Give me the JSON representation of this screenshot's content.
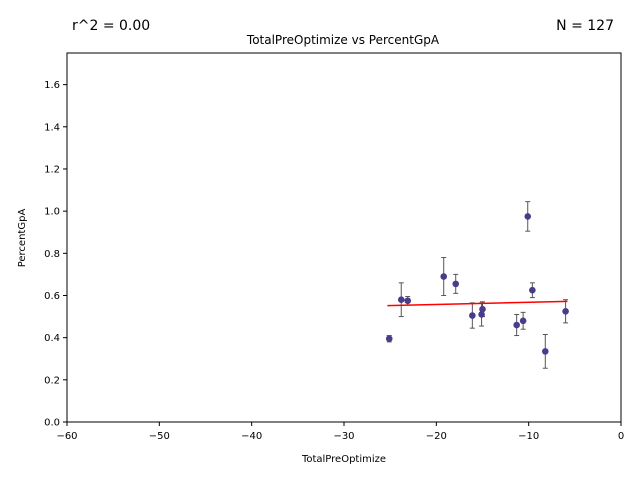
{
  "chart_data": {
    "type": "scatter",
    "title": "TotalPreOptimize vs PercentGpA",
    "xlabel": "TotalPreOptimize",
    "ylabel": "PercentGpA",
    "xlim": [
      -60,
      0
    ],
    "ylim": [
      0,
      1.75
    ],
    "xticks": [
      -60,
      -50,
      -40,
      -30,
      -20,
      -10,
      0
    ],
    "xtick_labels": [
      "−60",
      "−50",
      "−40",
      "−30",
      "−20",
      "−10",
      "0"
    ],
    "yticks": [
      0.0,
      0.2,
      0.4,
      0.6,
      0.8,
      1.0,
      1.2,
      1.4,
      1.6
    ],
    "ytick_labels": [
      "0.0",
      "0.2",
      "0.4",
      "0.6",
      "0.8",
      "1.0",
      "1.2",
      "1.4",
      "1.6"
    ],
    "grid": false,
    "annotations": {
      "r_squared": "r^2 = 0.00",
      "n": "N = 127"
    },
    "colors": {
      "points": "#483d8b",
      "errorbars": "#555555",
      "fit_line": "#ff0000"
    },
    "points": [
      {
        "x": -25.1,
        "y": 0.395,
        "err": 0.015
      },
      {
        "x": -23.8,
        "y": 0.58,
        "err": 0.08
      },
      {
        "x": -23.1,
        "y": 0.575,
        "err": 0.02
      },
      {
        "x": -19.2,
        "y": 0.69,
        "err": 0.09
      },
      {
        "x": -17.9,
        "y": 0.655,
        "err": 0.045
      },
      {
        "x": -16.1,
        "y": 0.505,
        "err": 0.06
      },
      {
        "x": -15.1,
        "y": 0.51,
        "err": 0.055
      },
      {
        "x": -15.0,
        "y": 0.535,
        "err": 0.035
      },
      {
        "x": -11.3,
        "y": 0.46,
        "err": 0.05
      },
      {
        "x": -10.6,
        "y": 0.48,
        "err": 0.04
      },
      {
        "x": -10.1,
        "y": 0.975,
        "err": 0.07
      },
      {
        "x": -9.6,
        "y": 0.625,
        "err": 0.035
      },
      {
        "x": -8.2,
        "y": 0.335,
        "err": 0.08
      },
      {
        "x": -6.0,
        "y": 0.525,
        "err": 0.055
      }
    ],
    "fit_line": {
      "x": [
        -25.3,
        -5.8
      ],
      "y": [
        0.552,
        0.572
      ]
    }
  }
}
